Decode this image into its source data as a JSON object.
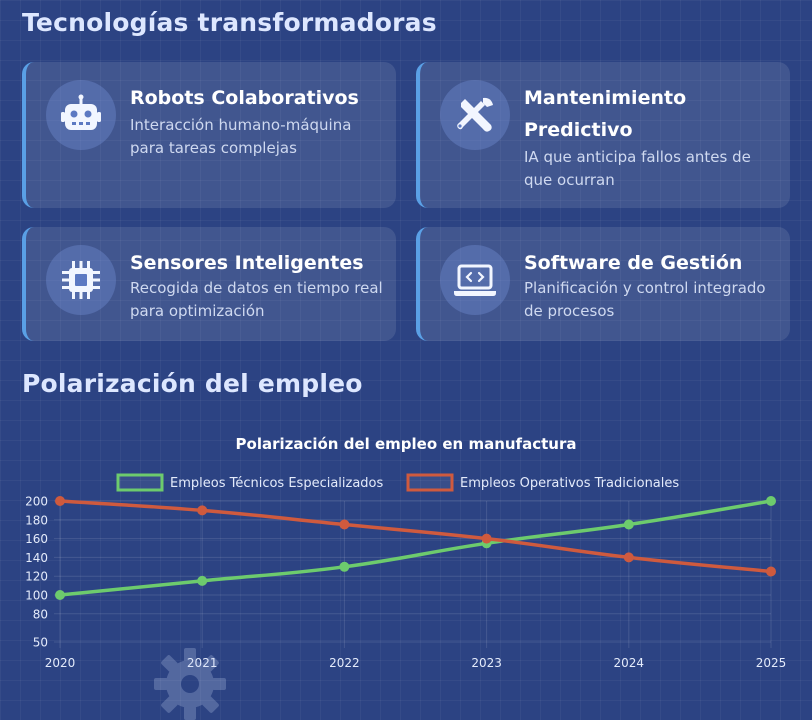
{
  "sections": {
    "technologies_title": "Tecnologías transformadoras",
    "polarization_title": "Polarización del empleo"
  },
  "cards": [
    {
      "title": "Robots Colaborativos",
      "description": "Interacción humano-máquina para tareas complejas",
      "icon": "robot-icon"
    },
    {
      "title": "Mantenimiento Predictivo",
      "description": "IA que anticipa fallos antes de que ocurran",
      "icon": "tools-icon"
    },
    {
      "title": "Sensores Inteligentes",
      "description": "Recogida de datos en tiempo real para optimización",
      "icon": "microchip-icon"
    },
    {
      "title": "Software de Gestión",
      "description": "Planificación y control integrado de procesos",
      "icon": "laptop-code-icon"
    }
  ],
  "colors": {
    "background": "#2c4383",
    "accent_border": "#5aa0e6",
    "series_green": "#6dcb6d",
    "series_red": "#cf5a3e"
  },
  "chart_data": {
    "type": "line",
    "title": "Polarización del empleo en manufactura",
    "categories": [
      "2020",
      "2021",
      "2022",
      "2023",
      "2024",
      "2025"
    ],
    "series": [
      {
        "name": "Empleos Técnicos Especializados",
        "values": [
          100,
          115,
          130,
          155,
          175,
          200
        ],
        "color": "#6dcb6d"
      },
      {
        "name": "Empleos Operativos Tradicionales",
        "values": [
          200,
          190,
          175,
          160,
          140,
          125
        ],
        "color": "#cf5a3e"
      }
    ],
    "y_ticks": [
      50,
      80,
      100,
      120,
      140,
      160,
      180,
      200
    ],
    "ylim": [
      50,
      200
    ],
    "legend_position": "top",
    "grid": true
  }
}
